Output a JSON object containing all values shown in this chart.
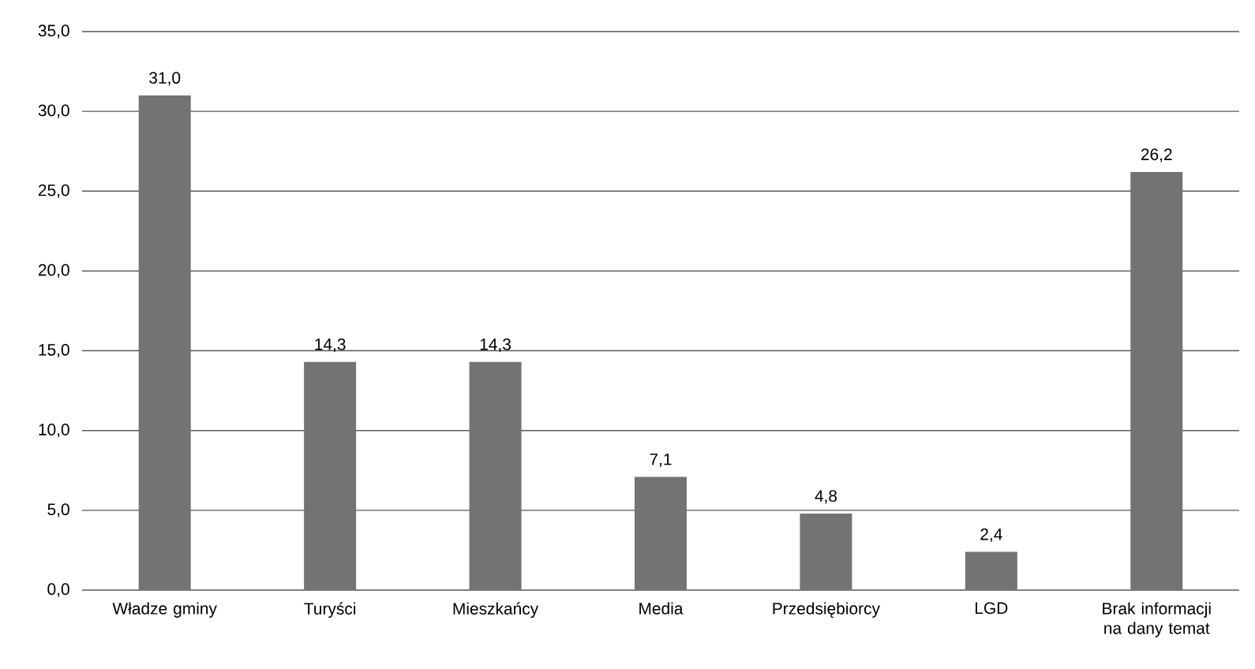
{
  "chart_data": {
    "type": "bar",
    "categories": [
      "Władze gminy",
      "Turyści",
      "Mieszkańcy",
      "Media",
      "Przedsiębiorcy",
      "LGD",
      "Brak informacji na dany temat"
    ],
    "values": [
      31.0,
      14.3,
      14.3,
      7.1,
      4.8,
      2.4,
      26.2
    ],
    "value_labels": [
      "31,0",
      "14,3",
      "14,3",
      "7,1",
      "4,8",
      "2,4",
      "26,2"
    ],
    "color": "#737373",
    "ylim": [
      0,
      35
    ],
    "yticks": [
      {
        "value": 0,
        "label": "0,0"
      },
      {
        "value": 5,
        "label": "5,0"
      },
      {
        "value": 10,
        "label": "10,0"
      },
      {
        "value": 15,
        "label": "15,0"
      },
      {
        "value": 20,
        "label": "20,0"
      },
      {
        "value": 25,
        "label": "25,0"
      },
      {
        "value": 30,
        "label": "30,0"
      },
      {
        "value": 35,
        "label": "35,0"
      }
    ],
    "grid": "y"
  }
}
